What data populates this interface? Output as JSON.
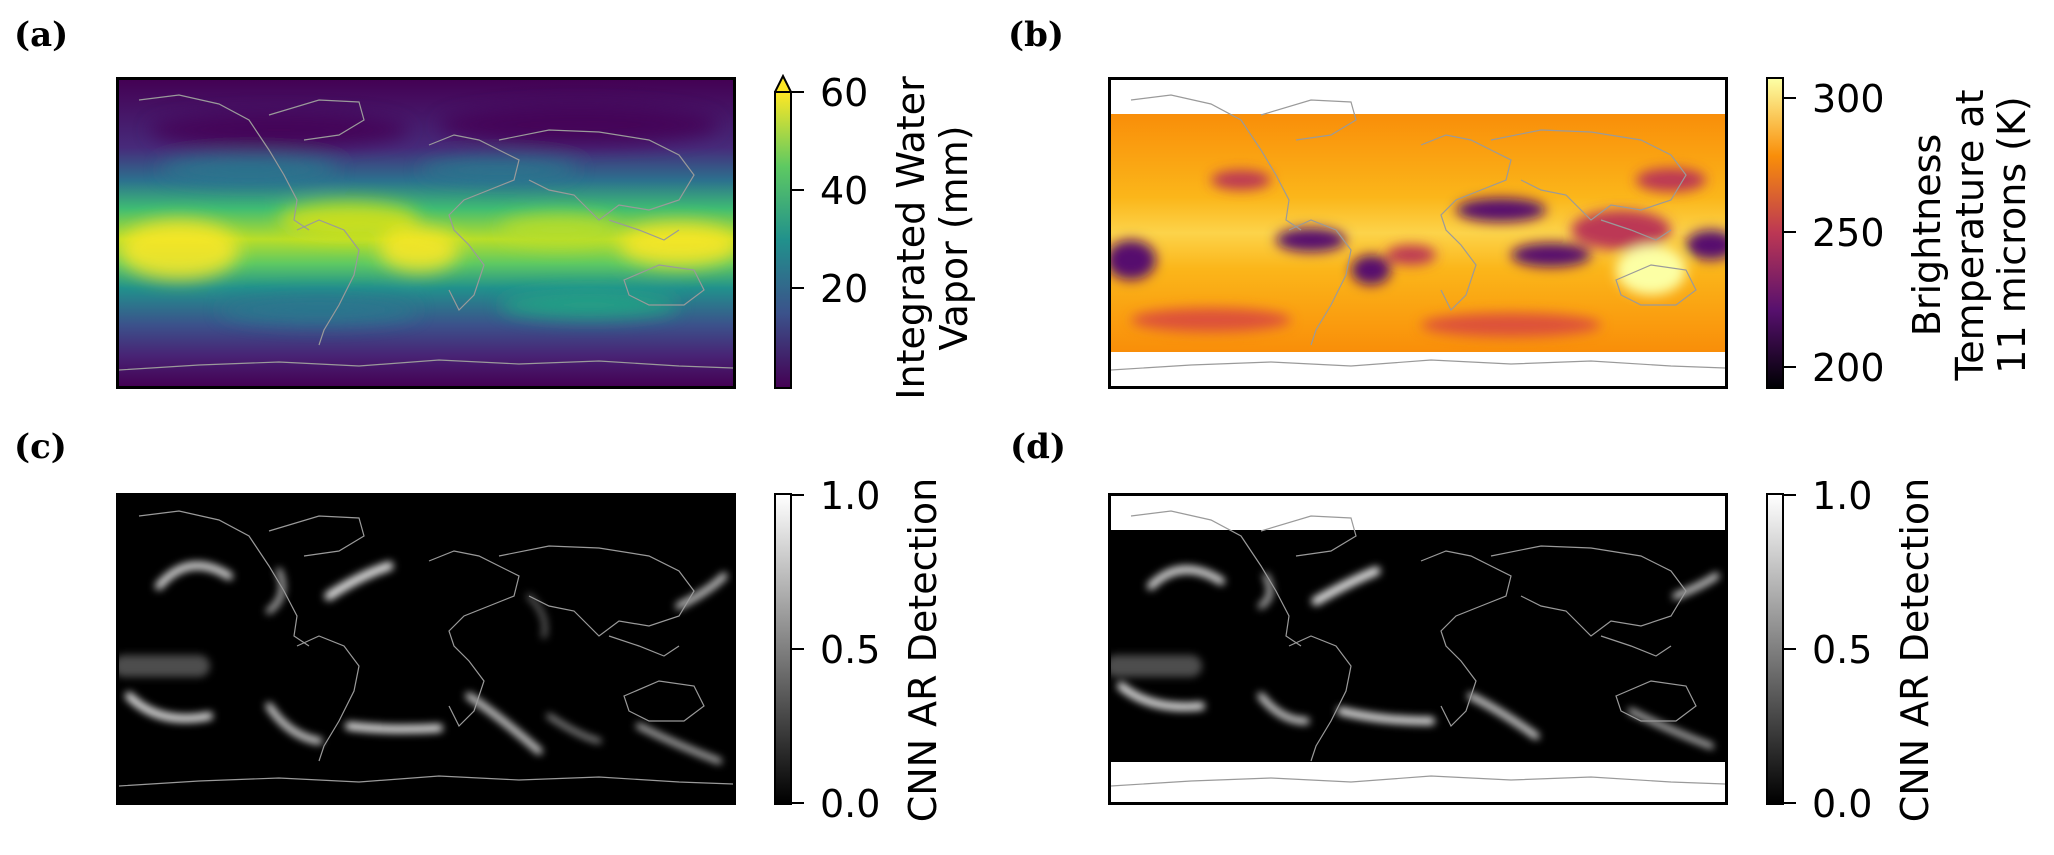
{
  "panels": [
    {
      "id": "a",
      "label": "(a)",
      "colormap": "viridis",
      "colorbar": {
        "label_lines": [
          "Integrated Water",
          "Vapor (mm)"
        ],
        "ticks": [
          "60",
          "40",
          "20"
        ],
        "extend": "max",
        "range": [
          0,
          62
        ]
      }
    },
    {
      "id": "b",
      "label": "(b)",
      "colormap": "inferno",
      "colorbar": {
        "label_lines": [
          "Brightness",
          "Temperature at",
          "11 microns (K)"
        ],
        "ticks": [
          "300",
          "250",
          "200"
        ],
        "range": [
          192,
          308
        ]
      }
    },
    {
      "id": "c",
      "label": "(c)",
      "colormap": "gray",
      "colorbar": {
        "label_lines": [
          "CNN AR Detection"
        ],
        "ticks": [
          "1.0",
          "0.5",
          "0.0"
        ],
        "range": [
          0,
          1
        ]
      }
    },
    {
      "id": "d",
      "label": "(d)",
      "colormap": "gray",
      "colorbar": {
        "label_lines": [
          "CNN AR Detection"
        ],
        "ticks": [
          "1.0",
          "0.5",
          "0.0"
        ],
        "range": [
          0,
          1
        ]
      }
    }
  ],
  "colors": {
    "viridis": [
      "#440154",
      "#3b528b",
      "#21918c",
      "#5ec962",
      "#fde725"
    ],
    "inferno": [
      "#000004",
      "#57106e",
      "#bc3754",
      "#f98e09",
      "#fcffa4"
    ],
    "gray": [
      "#000000",
      "#ffffff"
    ],
    "coastline": "#9a9a9a"
  }
}
